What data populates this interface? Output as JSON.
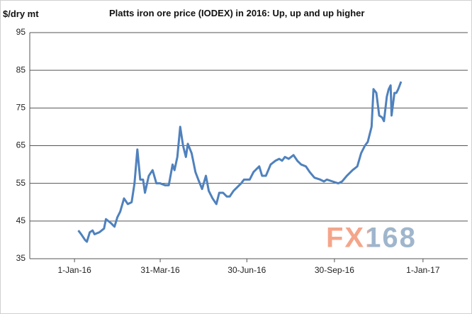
{
  "chart_data": {
    "type": "line",
    "title": "Platts iron ore price (IODEX) in 2016: Up, up and up higher",
    "y_label": "$/dry mt",
    "watermark": "FX168",
    "x": [
      "2016-01-05",
      "2016-01-08",
      "2016-01-12",
      "2016-01-14",
      "2016-01-17",
      "2016-01-20",
      "2016-01-22",
      "2016-01-27",
      "2016-02-01",
      "2016-02-03",
      "2016-02-08",
      "2016-02-12",
      "2016-02-15",
      "2016-02-18",
      "2016-02-22",
      "2016-02-26",
      "2016-03-01",
      "2016-03-04",
      "2016-03-07",
      "2016-03-10",
      "2016-03-13",
      "2016-03-15",
      "2016-03-19",
      "2016-03-23",
      "2016-03-27",
      "2016-03-31",
      "2016-04-05",
      "2016-04-09",
      "2016-04-13",
      "2016-04-15",
      "2016-04-18",
      "2016-04-21",
      "2016-04-24",
      "2016-04-27",
      "2016-04-29",
      "2016-05-03",
      "2016-05-07",
      "2016-05-10",
      "2016-05-14",
      "2016-05-18",
      "2016-05-21",
      "2016-05-25",
      "2016-05-29",
      "2016-06-01",
      "2016-06-05",
      "2016-06-09",
      "2016-06-12",
      "2016-06-16",
      "2016-06-24",
      "2016-06-27",
      "2016-07-03",
      "2016-07-07",
      "2016-07-13",
      "2016-07-16",
      "2016-07-20",
      "2016-07-25",
      "2016-07-30",
      "2016-08-03",
      "2016-08-06",
      "2016-08-09",
      "2016-08-13",
      "2016-08-18",
      "2016-08-22",
      "2016-08-26",
      "2016-08-31",
      "2016-09-04",
      "2016-09-09",
      "2016-09-15",
      "2016-09-19",
      "2016-09-22",
      "2016-09-28",
      "2016-10-04",
      "2016-10-08",
      "2016-10-13",
      "2016-10-19",
      "2016-10-24",
      "2016-10-28",
      "2016-11-01",
      "2016-11-04",
      "2016-11-08",
      "2016-11-10",
      "2016-11-13",
      "2016-11-16",
      "2016-11-19",
      "2016-11-21",
      "2016-11-24",
      "2016-11-26",
      "2016-11-28",
      "2016-11-29",
      "2016-12-02",
      "2016-12-04",
      "2016-12-06",
      "2016-12-09"
    ],
    "series": [
      {
        "name": "IODEX",
        "color": "#4f81bd",
        "values": [
          42.5,
          41.5,
          40,
          39.5,
          42,
          42.5,
          41.5,
          42,
          43,
          45.5,
          44.5,
          43.5,
          46,
          47.5,
          51,
          49.5,
          50,
          55,
          64,
          56,
          56,
          52.5,
          57,
          58.5,
          55,
          55,
          54.5,
          54.5,
          60,
          58.5,
          62,
          70,
          65,
          62,
          65.5,
          63,
          58,
          56,
          53.5,
          57,
          53,
          51,
          49.5,
          52.5,
          52.5,
          51.5,
          51.5,
          53,
          55,
          56,
          56,
          58,
          59.5,
          57,
          57,
          60,
          61,
          61.5,
          61,
          62,
          61.5,
          62.5,
          61,
          60,
          59.5,
          58,
          56.5,
          56,
          55.5,
          56,
          55.5,
          55,
          55.5,
          57,
          58.5,
          59.5,
          63,
          65,
          66,
          70,
          80,
          79,
          73,
          72.5,
          71.5,
          78,
          80,
          81,
          73,
          79,
          79,
          80,
          82
        ]
      }
    ],
    "xlim": [
      "2015-11-15",
      "2017-02-17"
    ],
    "xticks": [
      {
        "value": "2016-01-01",
        "label": "1-Jan-16"
      },
      {
        "value": "2016-03-31",
        "label": "31-Mar-16"
      },
      {
        "value": "2016-06-30",
        "label": "30-Jun-16"
      },
      {
        "value": "2016-09-30",
        "label": "30-Sep-16"
      },
      {
        "value": "2017-01-01",
        "label": "1-Jan-17"
      }
    ],
    "ylim": [
      35,
      95
    ],
    "yticks": [
      35,
      45,
      55,
      65,
      75,
      85,
      95
    ],
    "grid": true
  }
}
